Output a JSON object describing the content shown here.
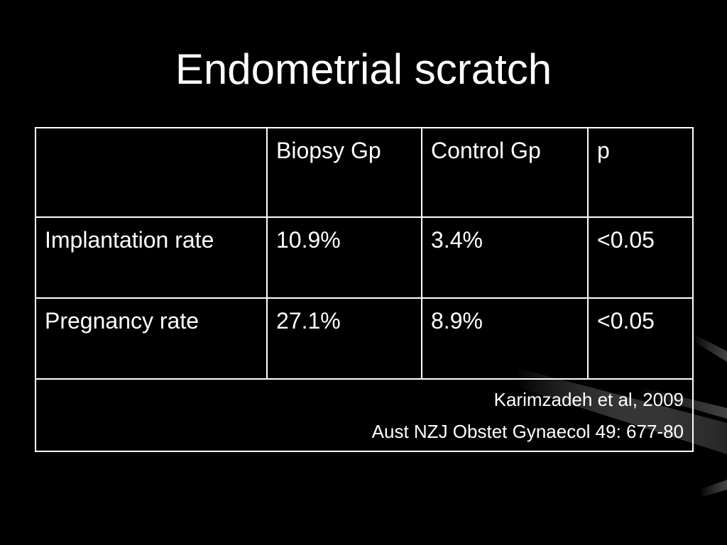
{
  "slide": {
    "title": "Endometrial scratch",
    "accent_color": "#ffffff",
    "background_color": "#000000"
  },
  "table": {
    "header": [
      "",
      "Biopsy Gp",
      "Control Gp",
      "p"
    ],
    "rows": [
      {
        "label": "Implantation rate",
        "biopsy": "10.9%",
        "control": "3.4%",
        "p": "<0.05"
      },
      {
        "label": "Pregnancy rate",
        "biopsy": "27.1%",
        "control": "8.9%",
        "p": "<0.05"
      }
    ],
    "citation": {
      "line1": "Karimzadeh et al, 2009",
      "line2": "Aust NZJ Obstet Gynaecol 49: 677-80"
    }
  }
}
